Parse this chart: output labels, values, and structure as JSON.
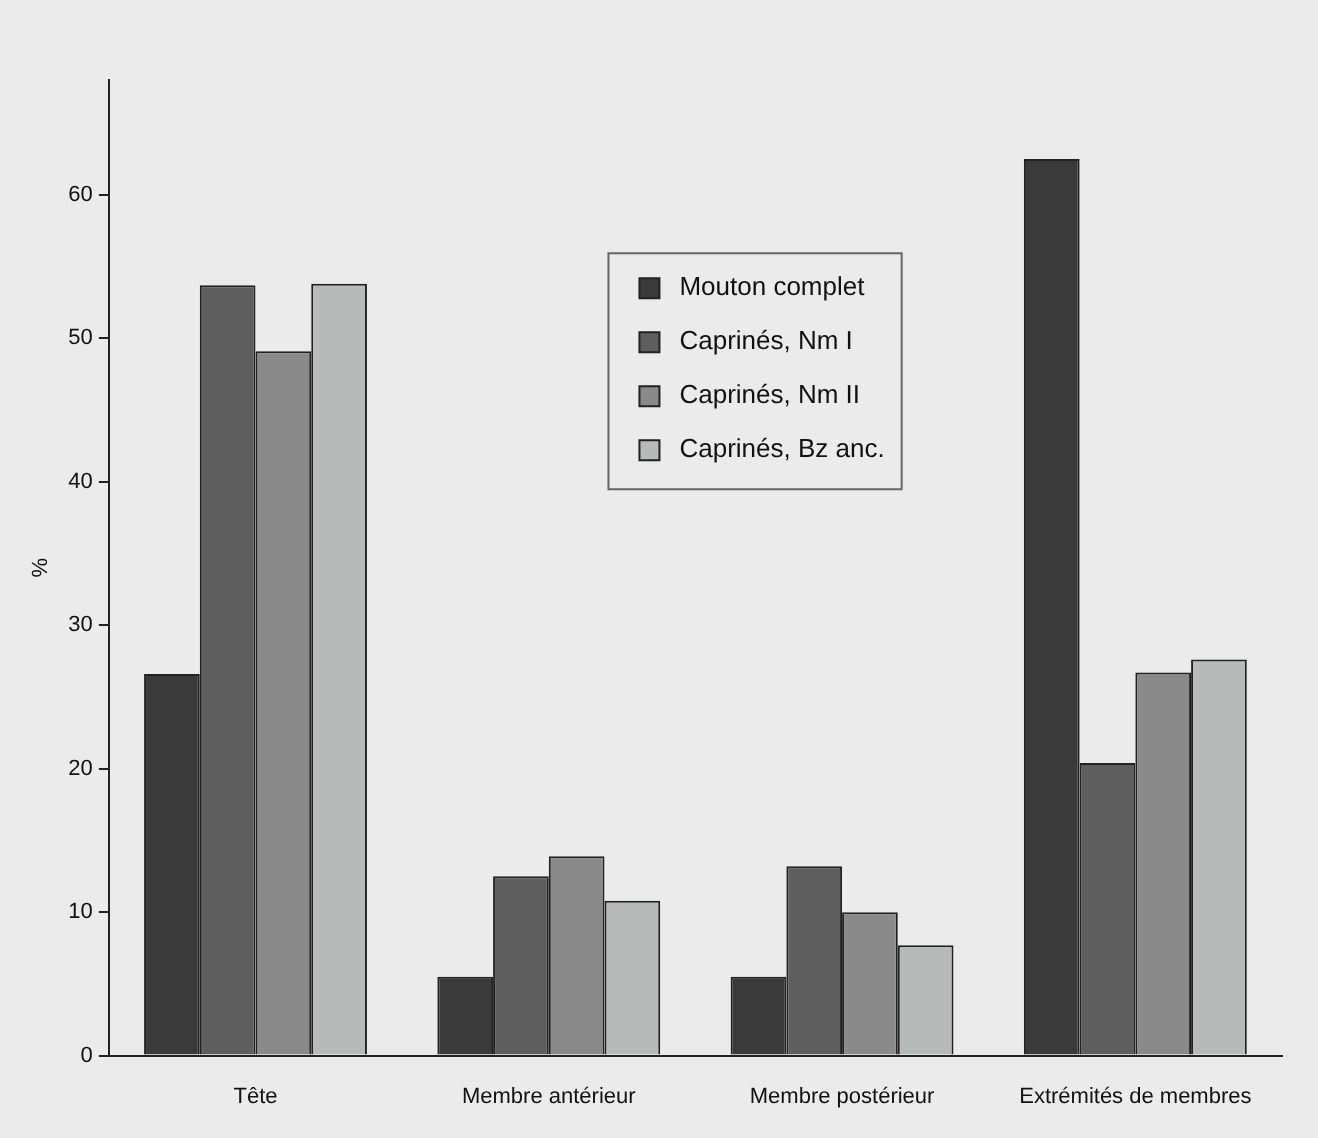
{
  "chart_data": {
    "type": "bar",
    "ylabel": "%",
    "categories": [
      "Tête",
      "Membre antérieur",
      "Membre postérieur",
      "Extrémités de membres"
    ],
    "series": [
      {
        "name": "Mouton complet",
        "color": "#3a3a3a",
        "values": [
          26.6,
          5.5,
          5.5,
          62.5
        ]
      },
      {
        "name": "Caprinés, Nm I",
        "color": "#5e5e5e",
        "values": [
          53.7,
          12.5,
          13.2,
          20.4
        ]
      },
      {
        "name": "Caprinés, Nm II",
        "color": "#8a8a8a",
        "values": [
          49.1,
          13.9,
          10.0,
          26.7
        ]
      },
      {
        "name": "Caprinés, Bz anc.",
        "color": "#b6bab8",
        "values": [
          53.8,
          10.8,
          7.7,
          27.6
        ]
      }
    ],
    "ylim": [
      0,
      68
    ],
    "yticks": [
      0,
      10,
      20,
      30,
      40,
      50,
      60
    ],
    "grid": false,
    "legend": "top right"
  }
}
